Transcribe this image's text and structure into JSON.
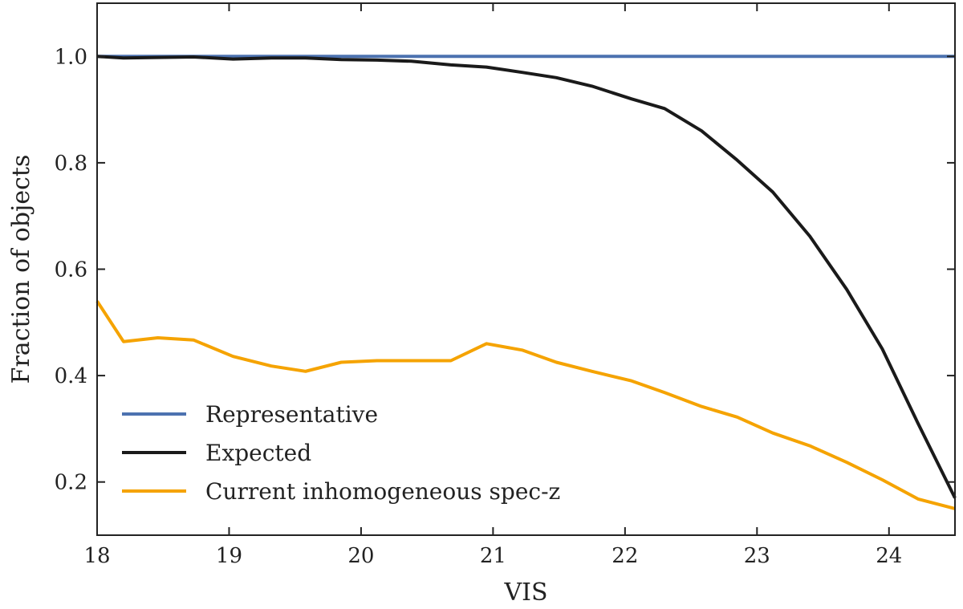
{
  "chart_data": {
    "type": "line",
    "title": "",
    "xlabel": "VIS",
    "ylabel": "Fraction of objects",
    "xlim": [
      18,
      24.5
    ],
    "ylim": [
      0.1,
      1.1
    ],
    "xticks": [
      18,
      19,
      20,
      21,
      22,
      23,
      24
    ],
    "xtick_labels": [
      "18",
      "19",
      "20",
      "21",
      "22",
      "23",
      "24"
    ],
    "yticks": [
      0.2,
      0.4,
      0.6,
      0.8,
      1.0
    ],
    "ytick_labels": [
      "0.2",
      "0.4",
      "0.6",
      "0.8",
      "1.0"
    ],
    "grid": false,
    "legend_position": "lower-left",
    "series": [
      {
        "name": "Representative",
        "color": "#4c72b0",
        "x": [
          18.0,
          24.5
        ],
        "y": [
          1.0,
          1.0
        ]
      },
      {
        "name": "Expected",
        "color": "#1a1a1a",
        "x": [
          18.0,
          18.2,
          18.46,
          18.73,
          19.03,
          19.32,
          19.58,
          19.85,
          20.12,
          20.38,
          20.68,
          20.95,
          21.22,
          21.48,
          21.75,
          22.05,
          22.3,
          22.58,
          22.85,
          23.12,
          23.4,
          23.68,
          23.95,
          24.22,
          24.5
        ],
        "y": [
          1.0,
          0.997,
          0.998,
          0.999,
          0.995,
          0.997,
          0.997,
          0.994,
          0.993,
          0.991,
          0.984,
          0.98,
          0.97,
          0.96,
          0.944,
          0.92,
          0.902,
          0.86,
          0.805,
          0.745,
          0.662,
          0.562,
          0.45,
          0.31,
          0.17
        ]
      },
      {
        "name": "Current inhomogeneous spec-z",
        "color": "#f5a300",
        "x": [
          18.0,
          18.2,
          18.46,
          18.73,
          19.03,
          19.32,
          19.58,
          19.85,
          20.12,
          20.38,
          20.68,
          20.95,
          21.22,
          21.48,
          21.75,
          22.05,
          22.3,
          22.58,
          22.85,
          23.12,
          23.4,
          23.68,
          23.95,
          24.22,
          24.5
        ],
        "y": [
          0.54,
          0.464,
          0.471,
          0.467,
          0.436,
          0.418,
          0.408,
          0.425,
          0.428,
          0.428,
          0.428,
          0.46,
          0.448,
          0.425,
          0.408,
          0.39,
          0.368,
          0.342,
          0.322,
          0.292,
          0.268,
          0.237,
          0.204,
          0.168,
          0.15
        ]
      }
    ]
  }
}
